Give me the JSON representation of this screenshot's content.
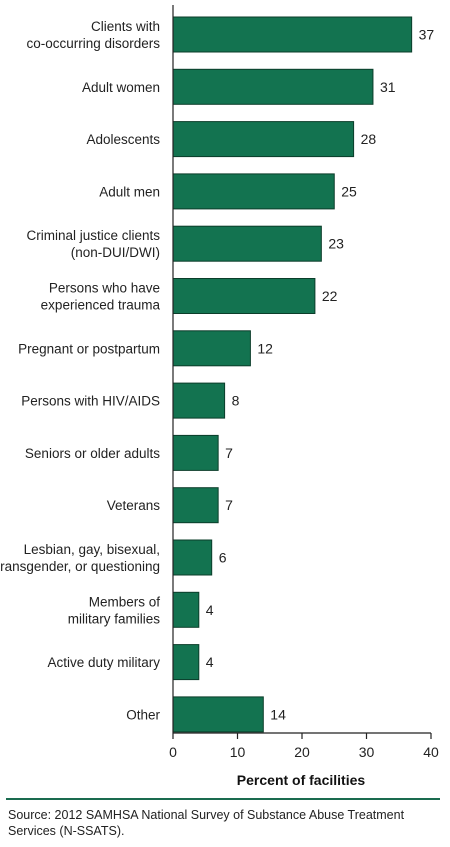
{
  "chart_data": {
    "type": "bar",
    "orientation": "horizontal",
    "categories": [
      [
        "Clients with",
        "co-occurring disorders"
      ],
      [
        "Adult women"
      ],
      [
        "Adolescents"
      ],
      [
        "Adult men"
      ],
      [
        "Criminal justice clients",
        "(non-DUI/DWI)"
      ],
      [
        "Persons who have",
        "experienced trauma"
      ],
      [
        "Pregnant or postpartum"
      ],
      [
        "Persons with HIV/AIDS"
      ],
      [
        "Seniors or older adults"
      ],
      [
        "Veterans"
      ],
      [
        "Lesbian, gay, bisexual,",
        "transgender, or questioning"
      ],
      [
        "Members of",
        "military families"
      ],
      [
        "Active duty military"
      ],
      [
        "Other"
      ]
    ],
    "values": [
      37,
      31,
      28,
      25,
      23,
      22,
      12,
      8,
      7,
      7,
      6,
      4,
      4,
      14
    ],
    "xlabel": "Percent of facilities",
    "xlim": [
      0,
      40
    ],
    "xticks": [
      0,
      10,
      20,
      30,
      40
    ],
    "grid": false,
    "bar_color": "#137350",
    "bar_stroke": "#0b3d2a"
  },
  "footer": {
    "source": "Source: 2012 SAMHSA National Survey of Substance Abuse Treatment Services (N-SSATS)."
  },
  "colors": {
    "divider": "#1a6b4f"
  }
}
